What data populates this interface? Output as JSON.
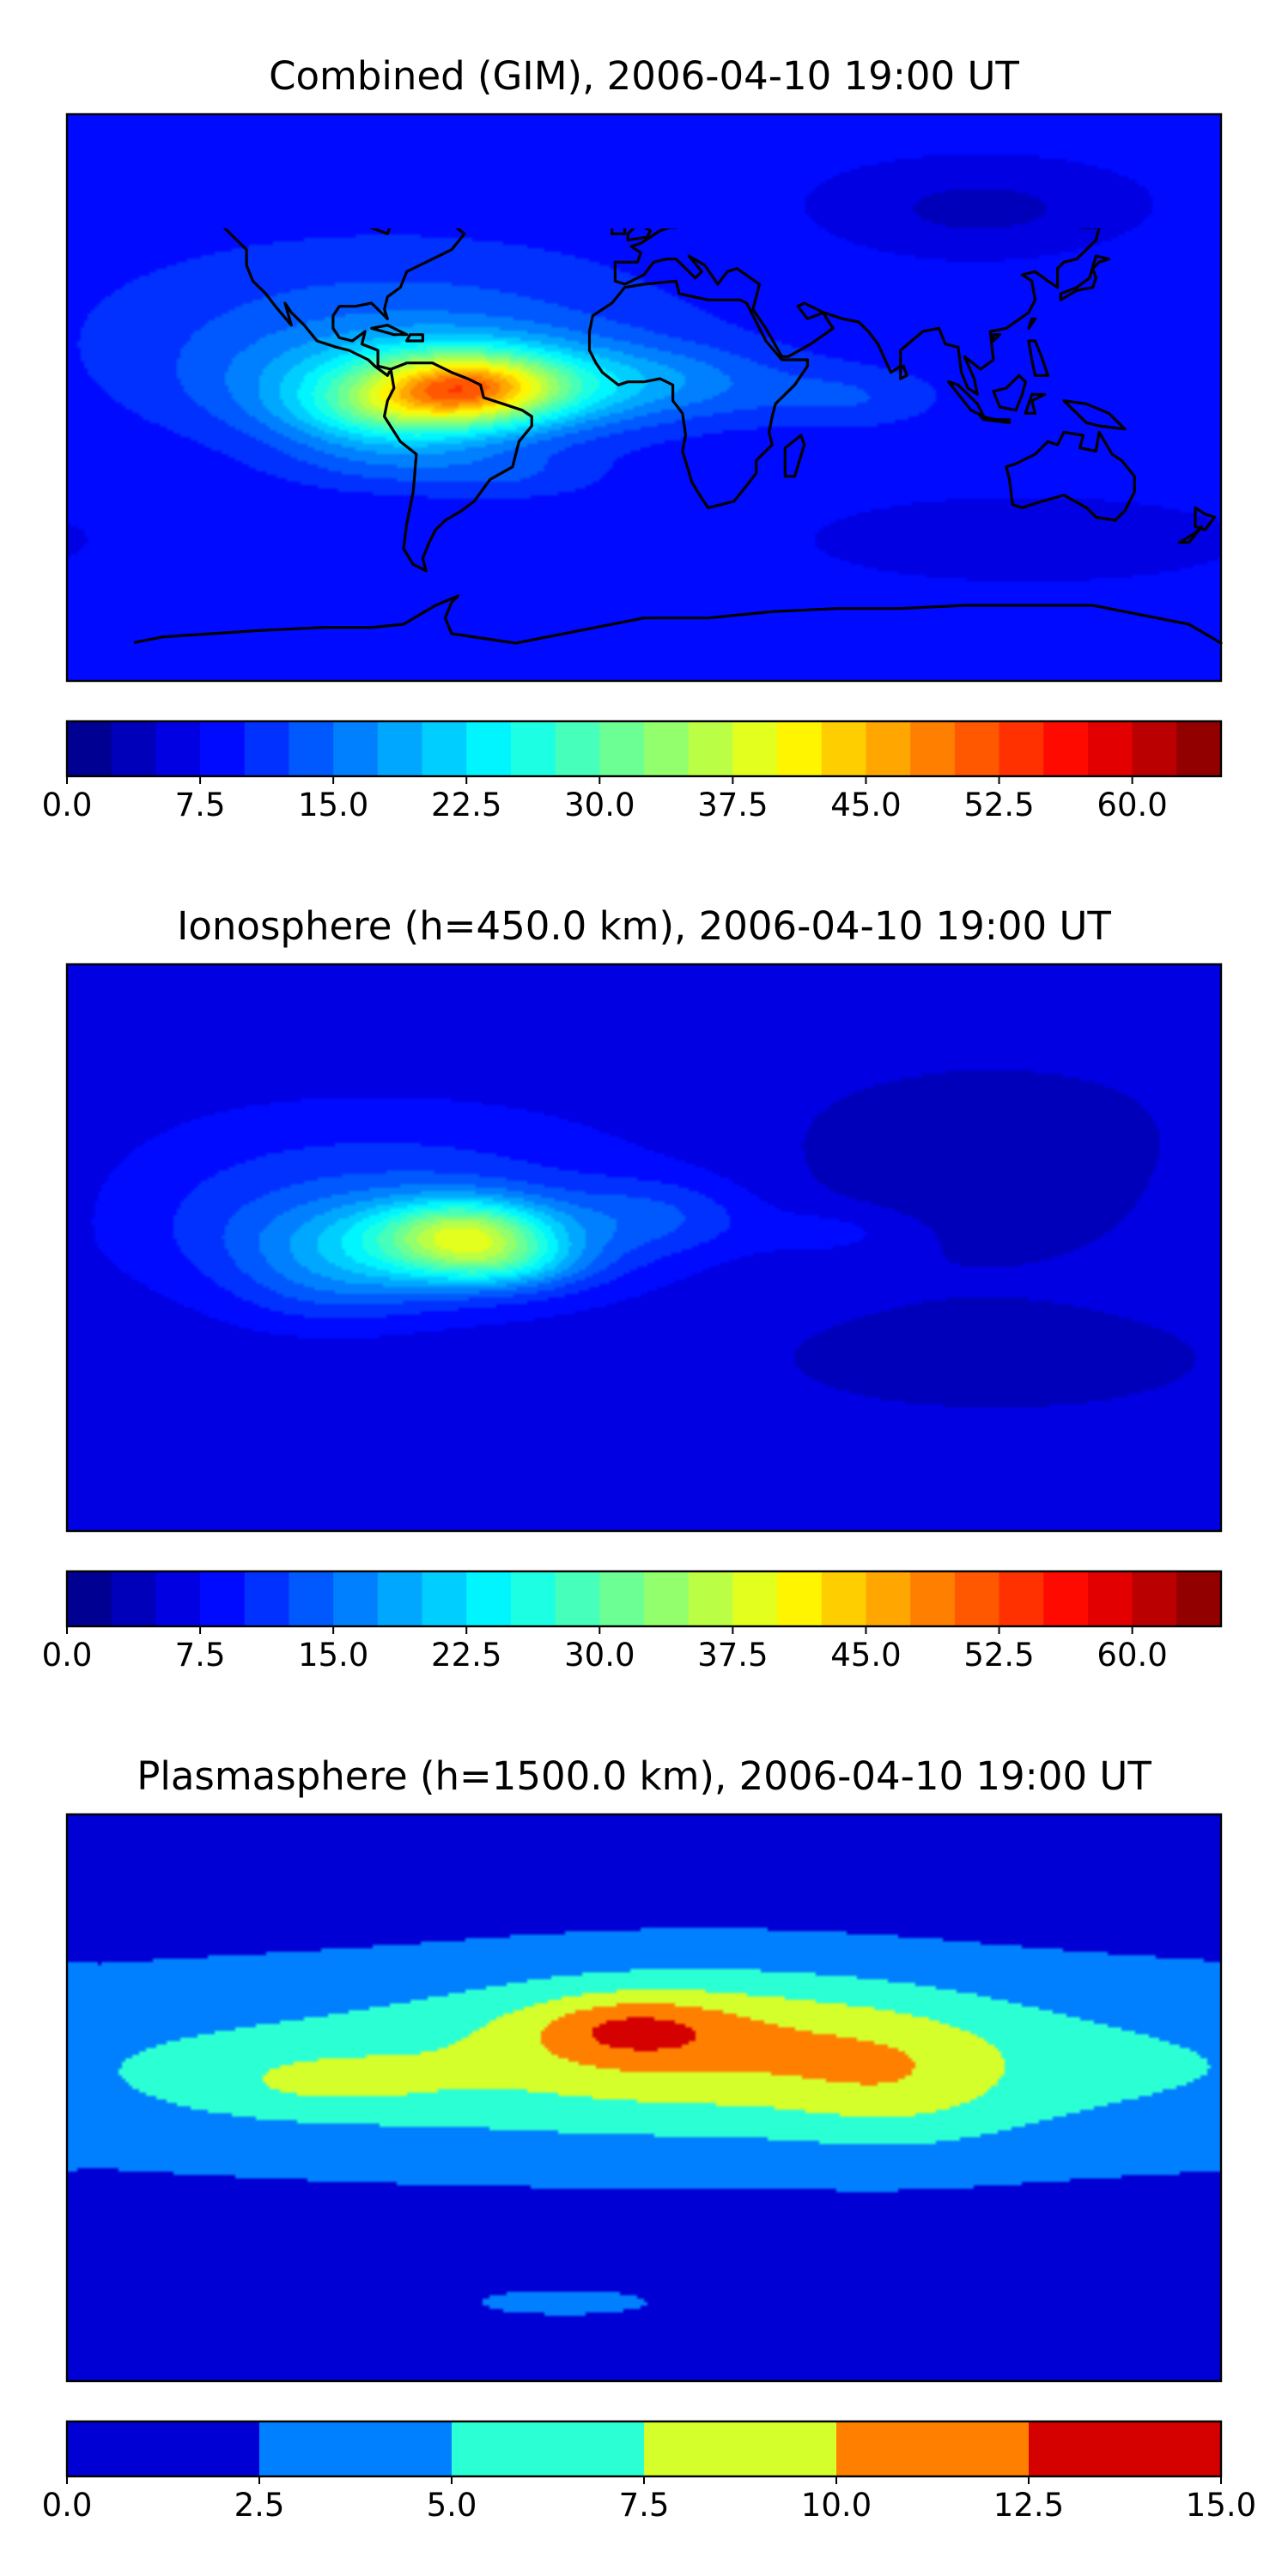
{
  "chart_data": [
    {
      "type": "heatmap",
      "title": "Combined (GIM), 2006-04-10 19:00 UT",
      "colorbar": {
        "range": [
          0,
          65
        ],
        "level_step": 2.5,
        "ticks": [
          "0.0",
          "7.5",
          "15.0",
          "22.5",
          "30.0",
          "37.5",
          "45.0",
          "52.5",
          "60.0"
        ],
        "colormap": "jet"
      },
      "background_level": 8,
      "blobs": [
        {
          "lon": -80,
          "lat": 20,
          "rx": 90,
          "ry": 30,
          "amp": 6
        },
        {
          "lon": -65,
          "lat": 3,
          "rx": 55,
          "ry": 16,
          "amp": 14
        },
        {
          "lon": -55,
          "lat": 3,
          "rx": 30,
          "ry": 11,
          "amp": 24
        },
        {
          "lon": -80,
          "lat": -5,
          "rx": 30,
          "ry": 10,
          "amp": 8
        },
        {
          "lon": 5,
          "lat": 5,
          "rx": 40,
          "ry": 12,
          "amp": 6
        },
        {
          "lon": 65,
          "lat": 0,
          "rx": 30,
          "ry": 10,
          "amp": 4
        },
        {
          "lon": -80,
          "lat": -20,
          "rx": 35,
          "ry": 10,
          "amp": 4
        },
        {
          "lon": -40,
          "lat": -25,
          "rx": 30,
          "ry": 8,
          "amp": 3
        },
        {
          "lon": 105,
          "lat": 60,
          "rx": 40,
          "ry": 12,
          "amp": -4
        },
        {
          "lon": 120,
          "lat": -45,
          "rx": 50,
          "ry": 10,
          "amp": -3
        }
      ]
    },
    {
      "type": "heatmap",
      "title": "Ionosphere  (h=450.0 km), 2006-04-10 19:00 UT",
      "colorbar": {
        "range": [
          0,
          65
        ],
        "level_step": 2.5,
        "ticks": [
          "0.0",
          "7.5",
          "15.0",
          "22.5",
          "30.0",
          "37.5",
          "45.0",
          "52.5",
          "60.0"
        ],
        "colormap": "jet"
      },
      "background_level": 6,
      "blobs": [
        {
          "lon": -85,
          "lat": 15,
          "rx": 85,
          "ry": 28,
          "amp": 6
        },
        {
          "lon": -70,
          "lat": 0,
          "rx": 50,
          "ry": 15,
          "amp": 13
        },
        {
          "lon": -55,
          "lat": 5,
          "rx": 25,
          "ry": 10,
          "amp": 16
        },
        {
          "lon": -45,
          "lat": -5,
          "rx": 25,
          "ry": 8,
          "amp": 8
        },
        {
          "lon": 5,
          "lat": 10,
          "rx": 30,
          "ry": 12,
          "amp": 5
        },
        {
          "lon": 60,
          "lat": 5,
          "rx": 25,
          "ry": 8,
          "amp": 3
        },
        {
          "lon": -100,
          "lat": -15,
          "rx": 30,
          "ry": 12,
          "amp": 3
        },
        {
          "lon": 110,
          "lat": 25,
          "rx": 70,
          "ry": 30,
          "amp": -3
        },
        {
          "lon": 110,
          "lat": -35,
          "rx": 60,
          "ry": 15,
          "amp": -3
        }
      ]
    },
    {
      "type": "heatmap",
      "title": "Plasmasphere (h=1500.0 km), 2006-04-10 19:00 UT",
      "colorbar": {
        "range": [
          0,
          15
        ],
        "level_step": 2.5,
        "ticks": [
          "0.0",
          "2.5",
          "5.0",
          "7.5",
          "10.0",
          "12.5",
          "15.0"
        ],
        "colormap": "jet"
      },
      "background_level": 1.5,
      "blobs": [
        {
          "lon": 10,
          "lat": 10,
          "rx": 260,
          "ry": 30,
          "amp": 5.2
        },
        {
          "lon": 20,
          "lat": 20,
          "rx": 70,
          "ry": 22,
          "amp": 4.0
        },
        {
          "lon": -5,
          "lat": 22,
          "rx": 30,
          "ry": 10,
          "amp": 4.0
        },
        {
          "lon": 80,
          "lat": 5,
          "rx": 35,
          "ry": 20,
          "amp": 2.5
        },
        {
          "lon": -100,
          "lat": 5,
          "rx": 40,
          "ry": 10,
          "amp": 2.5
        },
        {
          "lon": -25,
          "lat": -65,
          "rx": 40,
          "ry": 6,
          "amp": 1.5
        }
      ]
    }
  ],
  "coastline_icon": "world-coastline"
}
